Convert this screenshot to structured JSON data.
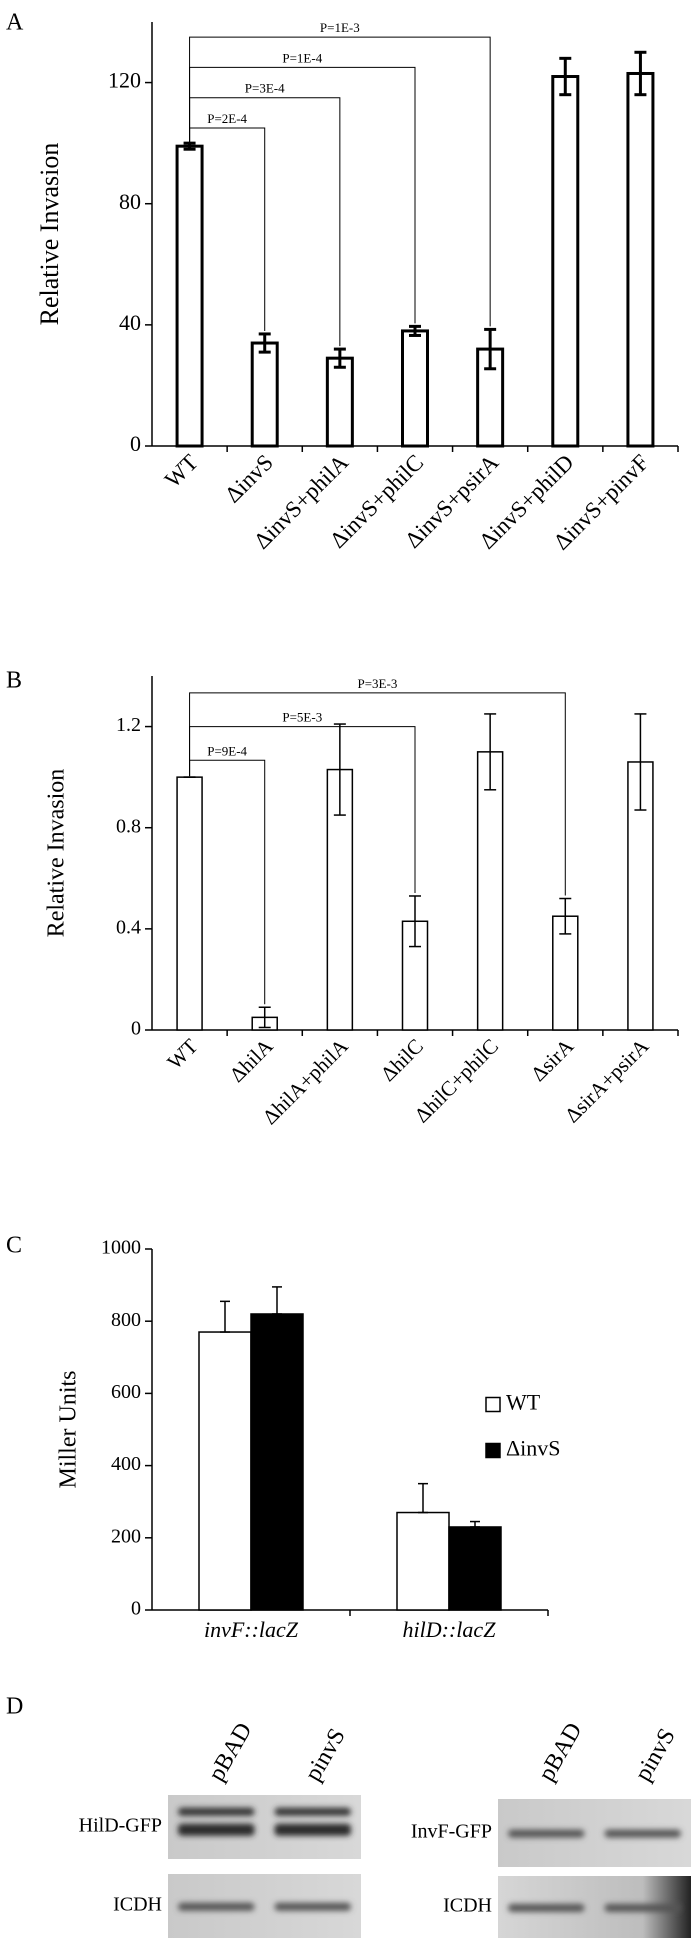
{
  "chart_data": [
    {
      "type": "bar",
      "panel_label": "A",
      "y_label": "Relative Invasion",
      "categories": [
        "WT",
        "ΔinvS",
        "ΔinvS+philA",
        "ΔinvS+philC",
        "ΔinvS+psirA",
        "ΔinvS+philD",
        "ΔinvS+pinvF"
      ],
      "values": [
        99,
        34,
        29,
        38,
        32,
        122,
        123
      ],
      "errors": [
        1,
        3,
        3,
        1.5,
        6.5,
        6,
        7
      ],
      "color": "#ffffff",
      "ylim": [
        0,
        140
      ],
      "yticks": [
        0,
        40,
        80,
        120
      ],
      "annotations": [
        {
          "text": "P=2E-4",
          "between": [
            "WT",
            "ΔinvS"
          ]
        },
        {
          "text": "P=3E-4",
          "between": [
            "WT",
            "ΔinvS+philA"
          ]
        },
        {
          "text": "P=1E-4",
          "between": [
            "WT",
            "ΔinvS+philC"
          ]
        },
        {
          "text": "P=1E-3",
          "between": [
            "WT",
            "ΔinvS+psirA"
          ]
        }
      ]
    },
    {
      "type": "bar",
      "panel_label": "B",
      "y_label": "Relative Invasion",
      "categories": [
        "WT",
        "ΔhilA",
        "ΔhilA+philA",
        "ΔhilC",
        "ΔhilC+philC",
        "ΔsirA",
        "ΔsirA+psirA"
      ],
      "values": [
        1.0,
        0.05,
        1.03,
        0.43,
        1.1,
        0.45,
        1.06
      ],
      "errors": [
        0,
        0.04,
        0.18,
        0.1,
        0.15,
        0.07,
        0.19
      ],
      "color": "#ffffff",
      "ylim": [
        0,
        1.4
      ],
      "yticks": [
        0,
        0.4,
        0.8,
        1.2
      ],
      "annotations": [
        {
          "text": "P=9E-4",
          "between": [
            "WT",
            "ΔhilA"
          ]
        },
        {
          "text": "P=5E-3",
          "between": [
            "WT",
            "ΔhilC"
          ]
        },
        {
          "text": "P=3E-3",
          "between": [
            "WT",
            "ΔsirA"
          ]
        }
      ]
    },
    {
      "type": "bar",
      "panel_label": "C",
      "y_label": "Miller Units",
      "categories": [
        "invF::lacZ",
        "hilD::lacZ"
      ],
      "series": [
        {
          "name": "WT",
          "color": "#ffffff",
          "values": [
            770,
            270
          ],
          "errors": [
            85,
            80
          ]
        },
        {
          "name": "ΔinvS",
          "color": "#000000",
          "values": [
            820,
            230
          ],
          "errors": [
            75,
            15
          ]
        }
      ],
      "ylim": [
        0,
        1000
      ],
      "yticks": [
        0,
        200,
        400,
        600,
        800,
        1000
      ],
      "legend": "right"
    }
  ],
  "panel_d": {
    "panel_label": "D",
    "blots": [
      {
        "lanes": [
          "pBAD",
          "pinvS"
        ],
        "rows": [
          "HilD-GFP",
          "ICDH"
        ]
      },
      {
        "lanes": [
          "pBAD",
          "pinvS"
        ],
        "rows": [
          "InvF-GFP",
          "ICDH"
        ]
      }
    ]
  }
}
